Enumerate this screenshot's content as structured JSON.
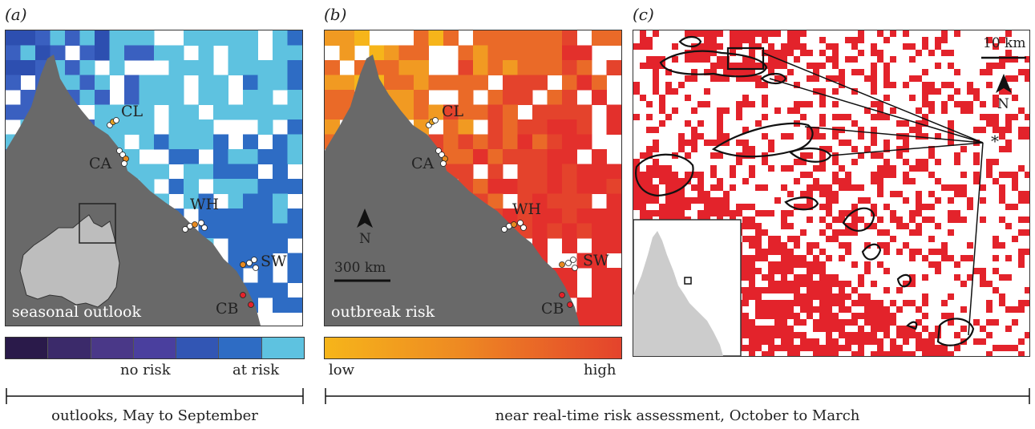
{
  "panels": {
    "a": {
      "letter": "(a)",
      "caption": "seasonal outlook",
      "sites": [
        "CL",
        "CA",
        "WH",
        "SW",
        "CB"
      ],
      "legend": {
        "colors": [
          "#2a1a4a",
          "#3b2a6a",
          "#4a3888",
          "#4a3f9e",
          "#3256b4",
          "#2e6cc4",
          "#5ec2e0"
        ],
        "labels": [
          "no risk",
          "at risk"
        ]
      }
    },
    "b": {
      "letter": "(b)",
      "caption": "outbreak risk",
      "sites": [
        "CL",
        "CA",
        "WH",
        "SW",
        "CB"
      ],
      "north": "N",
      "scale": "300 km",
      "legend": {
        "gradient": [
          "#f6b51a",
          "#ee8a22",
          "#e4432c"
        ],
        "labels": [
          "low",
          "high"
        ]
      }
    },
    "c": {
      "letter": "(c)",
      "north": "N",
      "scale": "10 km",
      "marker": "*"
    }
  },
  "brackets": {
    "left": "outlooks, May to September",
    "right": "near real-time risk assessment, October to March"
  },
  "colors": {
    "land": "#696969",
    "inset_land": "#cccccc",
    "risk_red": "#e3232b"
  }
}
